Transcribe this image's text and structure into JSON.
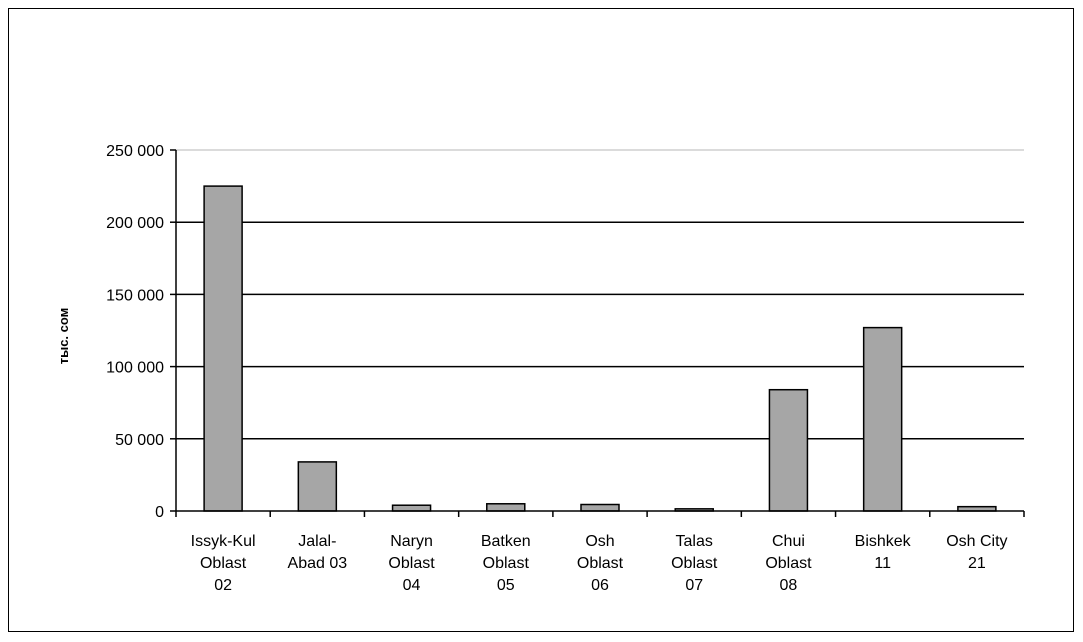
{
  "chart_data": {
    "type": "bar",
    "title": "",
    "xlabel": "",
    "ylabel": "тыс. сом",
    "ylim": [
      0,
      250000
    ],
    "yticks": [
      0,
      50000,
      100000,
      150000,
      200000,
      250000
    ],
    "ytick_labels": [
      "0",
      "50 000",
      "100 000",
      "150 000",
      "200 000",
      "250 000"
    ],
    "grid": "horizontal",
    "categories": [
      [
        "Issyk-Kul",
        "Oblast",
        "02"
      ],
      [
        "Jalal-",
        "Abad 03"
      ],
      [
        "Naryn",
        "Oblast",
        "04"
      ],
      [
        "Batken",
        "Oblast",
        "05"
      ],
      [
        "Osh",
        "Oblast",
        "06"
      ],
      [
        "Talas",
        "Oblast",
        "07"
      ],
      [
        "Chui",
        "Oblast",
        "08"
      ],
      [
        "Bishkek",
        "11"
      ],
      [
        "Osh City",
        "21"
      ]
    ],
    "values": [
      225000,
      34000,
      4000,
      5000,
      4500,
      1500,
      84000,
      127000,
      3000
    ],
    "bar_color": "#a6a6a6",
    "edge_color": "#000000"
  }
}
